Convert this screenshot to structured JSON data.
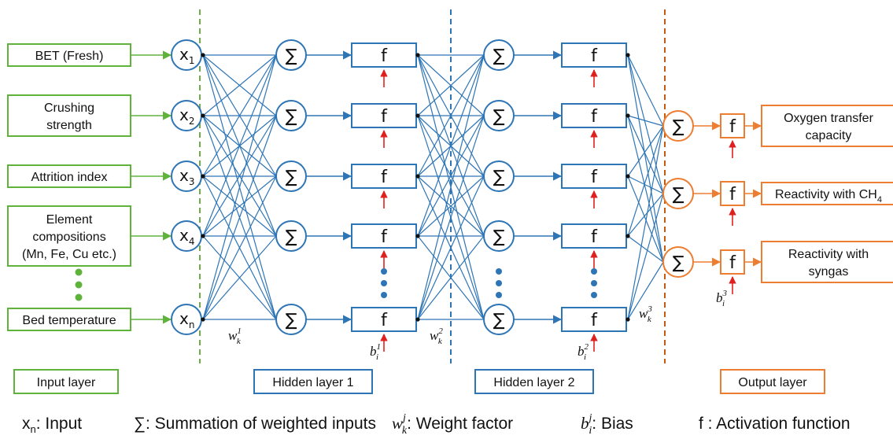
{
  "colors": {
    "input": "#5fb33b",
    "hidden": "#2e75b6",
    "output": "#ed7d31",
    "bias": "#e0201e",
    "dashed_input": "#70ad47",
    "dashed_hidden": "#2e75b6",
    "dashed_output": "#c55a11"
  },
  "inputs": [
    {
      "lines": [
        "BET (Fresh)"
      ],
      "node": "x",
      "sub": "1"
    },
    {
      "lines": [
        "Crushing",
        "strength"
      ],
      "node": "x",
      "sub": "2"
    },
    {
      "lines": [
        "Attrition index"
      ],
      "node": "x",
      "sub": "3"
    },
    {
      "lines": [
        "Element",
        "compositions",
        "(Mn, Fe, Cu etc.)"
      ],
      "node": "x",
      "sub": "4"
    },
    {
      "lines": [
        "Bed temperature"
      ],
      "node": "x",
      "sub": "n"
    }
  ],
  "outputs": [
    {
      "lines": [
        "Oxygen transfer",
        "capacity"
      ]
    },
    {
      "lines": [
        "Reactivity with CH"
      ],
      "sub": "4"
    },
    {
      "lines": [
        "Reactivity with",
        "syngas"
      ]
    }
  ],
  "symbols": {
    "sum": "∑",
    "activation": "f",
    "weight": "w",
    "bias": "b"
  },
  "annotations": [
    {
      "base": "w",
      "sub": "k",
      "sup": "1"
    },
    {
      "base": "w",
      "sub": "k",
      "sup": "2"
    },
    {
      "base": "w",
      "sub": "k",
      "sup": "3"
    },
    {
      "base": "b",
      "sub": "i",
      "sup": "1"
    },
    {
      "base": "b",
      "sub": "i",
      "sup": "2"
    },
    {
      "base": "b",
      "sub": "i",
      "sup": "3"
    }
  ],
  "layers": {
    "input": "Input layer",
    "hidden1": "Hidden layer 1",
    "hidden2": "Hidden layer 2",
    "output": "Output layer"
  },
  "legend": {
    "input_base": "x",
    "input_sub": "n",
    "input_text": ": Input",
    "sum_symbol": "∑",
    "sum_text": ": Summation of weighted inputs",
    "weight_base": "w",
    "weight_sub": "k",
    "weight_sup": "j",
    "weight_text": ": Weight factor",
    "bias_base": "b",
    "bias_sub": "i",
    "bias_sup": "j",
    "bias_text": ": Bias",
    "f_text": "f : Activation function"
  }
}
